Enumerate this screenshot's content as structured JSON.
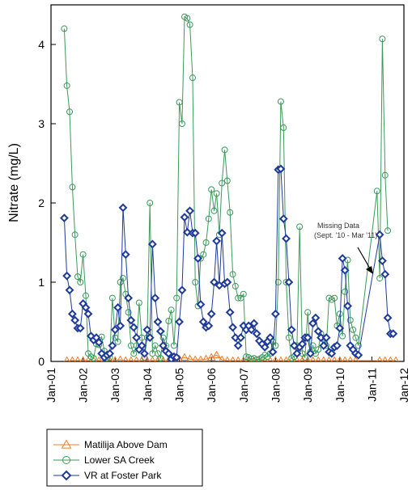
{
  "chart_data": {
    "type": "line",
    "title": "",
    "xlabel": "",
    "ylabel": "Nitrate (mg/L)",
    "x_ticks": [
      "Jan-01",
      "Jan-02",
      "Jan-03",
      "Jan-04",
      "Jan-05",
      "Jan-06",
      "Jan-07",
      "Jan-08",
      "Jan-09",
      "Jan-10",
      "Jan-11",
      "Jan-12"
    ],
    "xlim": [
      "2001-01-01",
      "2012-01-01"
    ],
    "y_ticks": [
      "0",
      "1",
      "2",
      "3",
      "4"
    ],
    "ylim": [
      0,
      4.5
    ],
    "grid": false,
    "legend_position": "bottom-left",
    "annotation": {
      "lines": [
        "Missing Data",
        "(Sept. '10 - Mar '11)"
      ]
    },
    "series": [
      {
        "name": "Matilija Above Dam",
        "color": "#f07d28",
        "marker": "triangle",
        "x": [
          "2001-07-01",
          "2001-09-01",
          "2001-11-01",
          "2002-01-01",
          "2002-03-01",
          "2002-05-01",
          "2002-07-01",
          "2002-09-01",
          "2002-11-01",
          "2003-01-01",
          "2003-03-01",
          "2003-05-01",
          "2003-07-01",
          "2003-09-01",
          "2003-11-01",
          "2004-01-01",
          "2004-03-01",
          "2004-05-01",
          "2004-07-01",
          "2004-09-01",
          "2004-11-01",
          "2005-01-01",
          "2005-03-01",
          "2005-05-01",
          "2005-07-01",
          "2005-09-01",
          "2005-11-01",
          "2006-01-01",
          "2006-03-01",
          "2006-05-01",
          "2006-07-01",
          "2006-09-01",
          "2006-11-01",
          "2007-01-01",
          "2007-03-01",
          "2007-05-01",
          "2007-07-01",
          "2007-09-01",
          "2007-11-01",
          "2008-01-01",
          "2008-03-01",
          "2008-05-01",
          "2008-07-01",
          "2008-09-01",
          "2008-11-01",
          "2009-01-01",
          "2009-03-01",
          "2009-05-01",
          "2009-07-01",
          "2009-09-01",
          "2009-11-01",
          "2010-01-01",
          "2010-03-01",
          "2010-05-01",
          "2010-07-01",
          "2011-04-01",
          "2011-06-01",
          "2011-08-01",
          "2011-10-01"
        ],
        "y": [
          0.01,
          0.01,
          0.01,
          0.01,
          0.01,
          0.01,
          0.01,
          0.01,
          0.01,
          0.01,
          0.02,
          0.01,
          0.01,
          0.01,
          0.01,
          0.01,
          0.01,
          0.01,
          0.01,
          0.01,
          0.01,
          0.03,
          0.05,
          0.03,
          0.02,
          0.02,
          0.03,
          0.05,
          0.08,
          0.02,
          0.01,
          0.01,
          0.01,
          0.01,
          0.01,
          0.01,
          0.01,
          0.01,
          0.01,
          0.01,
          0.01,
          0.01,
          0.01,
          0.01,
          0.01,
          0.01,
          0.01,
          0.01,
          0.01,
          0.01,
          0.01,
          0.01,
          0.01,
          0.01,
          0.01,
          0.01,
          0.01,
          0.01,
          0.01
        ]
      },
      {
        "name": "Lower SA Creek",
        "color": "#3a9a5a",
        "marker": "circle",
        "x": [
          "2001-06-01",
          "2001-07-01",
          "2001-08-01",
          "2001-09-01",
          "2001-10-01",
          "2001-11-01",
          "2001-12-01",
          "2002-01-01",
          "2002-02-01",
          "2002-03-01",
          "2002-04-01",
          "2002-05-01",
          "2002-06-01",
          "2002-07-01",
          "2002-08-01",
          "2002-09-01",
          "2002-10-01",
          "2002-11-01",
          "2002-12-01",
          "2003-01-01",
          "2003-02-01",
          "2003-03-01",
          "2003-04-01",
          "2003-05-01",
          "2003-06-01",
          "2003-07-01",
          "2003-08-01",
          "2003-09-01",
          "2003-10-01",
          "2003-11-01",
          "2003-12-01",
          "2004-01-01",
          "2004-02-01",
          "2004-03-01",
          "2004-04-01",
          "2004-05-01",
          "2004-06-01",
          "2004-07-01",
          "2004-08-01",
          "2004-09-01",
          "2004-10-01",
          "2004-11-01",
          "2004-12-01",
          "2005-01-01",
          "2005-02-01",
          "2005-03-01",
          "2005-04-01",
          "2005-05-01",
          "2005-06-01",
          "2005-07-01",
          "2005-08-01",
          "2005-09-01",
          "2005-10-01",
          "2005-11-01",
          "2005-12-01",
          "2006-01-01",
          "2006-02-01",
          "2006-03-01",
          "2006-04-01",
          "2006-05-01",
          "2006-06-01",
          "2006-07-01",
          "2006-08-01",
          "2006-09-01",
          "2006-10-01",
          "2006-11-01",
          "2006-12-01",
          "2007-01-01",
          "2007-02-01",
          "2007-03-01",
          "2007-04-01",
          "2007-05-01",
          "2007-06-01",
          "2007-07-01",
          "2007-08-01",
          "2007-09-01",
          "2007-10-01",
          "2007-11-01",
          "2007-12-01",
          "2008-01-01",
          "2008-02-01",
          "2008-03-01",
          "2008-04-01",
          "2008-05-01",
          "2008-06-01",
          "2008-07-01",
          "2008-08-01",
          "2008-09-01",
          "2008-10-01",
          "2008-11-01",
          "2008-12-01",
          "2009-01-01",
          "2009-02-01",
          "2009-03-01",
          "2009-04-01",
          "2009-05-01",
          "2009-06-01",
          "2009-07-01",
          "2009-08-01",
          "2009-09-01",
          "2009-10-01",
          "2009-11-01",
          "2009-12-01",
          "2010-01-01",
          "2010-02-01",
          "2010-03-01",
          "2010-04-01",
          "2010-05-01",
          "2010-06-01",
          "2010-07-01",
          "2010-08-01",
          "2011-03-01",
          "2011-04-01",
          "2011-05-01",
          "2011-06-01",
          "2011-07-01"
        ],
        "y": [
          4.2,
          3.48,
          3.15,
          2.2,
          1.6,
          1.07,
          1.0,
          1.35,
          0.83,
          0.1,
          0.06,
          0.04,
          0.22,
          0.21,
          0.31,
          0.13,
          0.04,
          0.05,
          0.8,
          0.3,
          0.25,
          1.0,
          1.05,
          0.85,
          0.62,
          0.2,
          0.1,
          0.2,
          0.74,
          0.3,
          0.05,
          0.3,
          2.0,
          0.1,
          0.2,
          0.1,
          0.04,
          0.3,
          0.2,
          0.51,
          0.65,
          0.2,
          0.8,
          3.27,
          3.0,
          4.35,
          4.33,
          4.25,
          3.58,
          1.0,
          0.7,
          1.3,
          1.35,
          1.5,
          1.8,
          2.17,
          1.9,
          2.12,
          1.6,
          2.25,
          2.67,
          2.28,
          1.88,
          1.1,
          0.95,
          0.8,
          0.8,
          0.85,
          0.06,
          0.05,
          0.03,
          0.04,
          0.02,
          0.03,
          0.05,
          0.08,
          0.06,
          0.1,
          0.25,
          0.2,
          1.0,
          3.28,
          2.95,
          1.0,
          0.3,
          0.04,
          0.06,
          0.2,
          1.7,
          0.1,
          0.05,
          0.62,
          0.12,
          0.2,
          0.1,
          0.15,
          0.35,
          0.3,
          0.2,
          0.8,
          0.78,
          0.8,
          0.45,
          0.6,
          0.32,
          0.88,
          1.28,
          0.52,
          0.4,
          0.3,
          0.2,
          2.15,
          1.05,
          4.07,
          2.35,
          1.65
        ]
      },
      {
        "name": "VR at Foster Park",
        "color": "#1e3a9a",
        "marker": "diamond",
        "x": [
          "2001-06-01",
          "2001-07-01",
          "2001-08-01",
          "2001-09-01",
          "2001-10-01",
          "2001-11-01",
          "2001-12-01",
          "2002-01-01",
          "2002-02-01",
          "2002-03-01",
          "2002-04-01",
          "2002-05-01",
          "2002-06-01",
          "2002-07-01",
          "2002-08-01",
          "2002-09-01",
          "2002-10-01",
          "2002-11-01",
          "2002-12-01",
          "2003-01-01",
          "2003-02-01",
          "2003-03-01",
          "2003-04-01",
          "2003-05-01",
          "2003-06-01",
          "2003-07-01",
          "2003-08-01",
          "2003-09-01",
          "2003-10-01",
          "2003-11-01",
          "2003-12-01",
          "2004-01-01",
          "2004-02-01",
          "2004-03-01",
          "2004-04-01",
          "2004-05-01",
          "2004-06-01",
          "2004-07-01",
          "2004-08-01",
          "2004-09-01",
          "2004-10-01",
          "2004-11-01",
          "2004-12-01",
          "2005-01-01",
          "2005-02-01",
          "2005-03-01",
          "2005-04-01",
          "2005-05-01",
          "2005-06-01",
          "2005-07-01",
          "2005-08-01",
          "2005-09-01",
          "2005-10-01",
          "2005-11-01",
          "2005-12-01",
          "2006-01-01",
          "2006-02-01",
          "2006-03-01",
          "2006-04-01",
          "2006-05-01",
          "2006-06-01",
          "2006-07-01",
          "2006-08-01",
          "2006-09-01",
          "2006-10-01",
          "2006-11-01",
          "2006-12-01",
          "2007-01-01",
          "2007-02-01",
          "2007-03-01",
          "2007-04-01",
          "2007-05-01",
          "2007-06-01",
          "2007-07-01",
          "2007-08-01",
          "2007-09-01",
          "2007-10-01",
          "2007-11-01",
          "2007-12-01",
          "2008-01-01",
          "2008-02-01",
          "2008-03-01",
          "2008-04-01",
          "2008-05-01",
          "2008-06-01",
          "2008-07-01",
          "2008-08-01",
          "2008-09-01",
          "2008-10-01",
          "2008-11-01",
          "2008-12-01",
          "2009-01-01",
          "2009-02-01",
          "2009-03-01",
          "2009-04-01",
          "2009-05-01",
          "2009-06-01",
          "2009-07-01",
          "2009-08-01",
          "2009-09-01",
          "2009-10-01",
          "2009-11-01",
          "2009-12-01",
          "2010-01-01",
          "2010-02-01",
          "2010-03-01",
          "2010-04-01",
          "2010-05-01",
          "2010-06-01",
          "2010-07-01",
          "2010-08-01",
          "2011-04-01",
          "2011-05-01",
          "2011-06-01",
          "2011-07-01",
          "2011-08-01",
          "2011-09-01"
        ],
        "y": [
          1.81,
          1.08,
          0.9,
          0.6,
          0.52,
          0.42,
          0.42,
          0.73,
          0.68,
          0.6,
          0.32,
          0.27,
          0.3,
          0.24,
          0.1,
          0.05,
          0.08,
          0.1,
          0.2,
          0.4,
          0.68,
          0.45,
          1.94,
          1.35,
          0.8,
          0.52,
          0.43,
          0.3,
          0.15,
          0.2,
          0.1,
          0.4,
          0.3,
          1.48,
          0.8,
          0.5,
          0.38,
          0.2,
          0.13,
          0.1,
          0.03,
          0.06,
          0.05,
          0.5,
          0.9,
          1.82,
          1.63,
          1.9,
          1.62,
          1.62,
          1.3,
          0.72,
          0.5,
          0.43,
          0.45,
          0.6,
          1.0,
          1.52,
          0.96,
          1.62,
          0.98,
          1.0,
          0.62,
          0.43,
          0.3,
          0.2,
          0.3,
          0.45,
          0.4,
          0.45,
          0.4,
          0.48,
          0.35,
          0.26,
          0.22,
          0.18,
          0.25,
          0.3,
          0.12,
          0.6,
          2.42,
          2.43,
          1.8,
          1.55,
          1.0,
          0.4,
          0.2,
          0.1,
          0.18,
          0.22,
          0.3,
          0.3,
          0.1,
          0.48,
          0.55,
          0.38,
          0.3,
          0.2,
          0.3,
          0.12,
          0.1,
          0.18,
          0.2,
          0.42,
          1.3,
          1.15,
          0.7,
          0.2,
          0.15,
          0.1,
          0.08,
          1.6,
          1.27,
          1.1,
          0.55,
          0.35,
          0.35
        ]
      }
    ]
  }
}
